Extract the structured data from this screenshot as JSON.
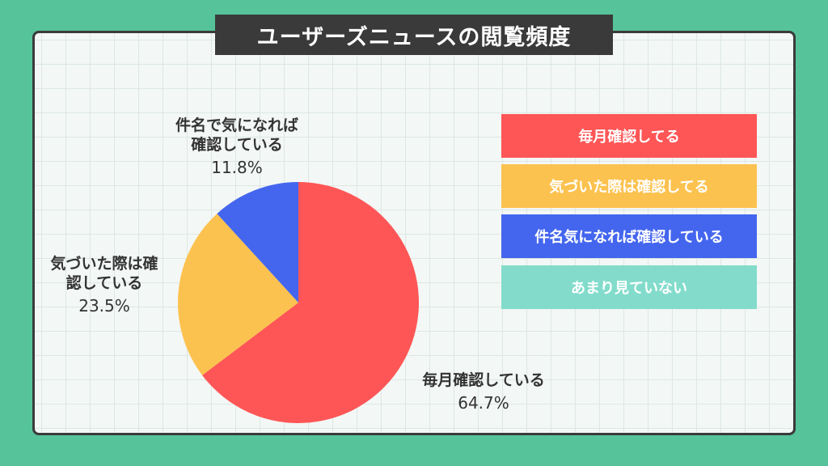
{
  "title": "ユーザーズニュースの閲覧頻度",
  "chart_data": {
    "type": "pie",
    "title": "ユーザーズニュースの閲覧頻度",
    "legend_position": "right",
    "slices": [
      {
        "label": "毎月確認している",
        "legend": "毎月確認してる",
        "value": 64.7,
        "display": "64.7%",
        "color": "#fe5656"
      },
      {
        "label": "気づいた際は確認している",
        "legend": "気づいた際は確認してる",
        "value": 23.5,
        "display": "23.5%",
        "color": "#fcc24f"
      },
      {
        "label": "件名で気になれば確認している",
        "legend": "件名気になれば確認している",
        "value": 11.8,
        "display": "11.8%",
        "color": "#4466ee"
      },
      {
        "label": "",
        "legend": "あまり見ていない",
        "value": 0,
        "display": "",
        "color": "#83dccb"
      }
    ]
  },
  "labels": {
    "s0": {
      "line1": "毎月確認している",
      "line2": "",
      "pct": "64.7%"
    },
    "s1": {
      "line1": "気づいた際は確",
      "line2": "認している",
      "pct": "23.5%"
    },
    "s2": {
      "line1": "件名で気になれば",
      "line2": "確認している",
      "pct": "11.8%"
    }
  }
}
